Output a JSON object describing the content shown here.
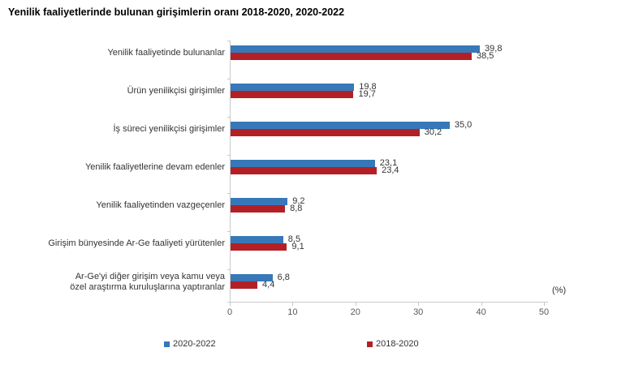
{
  "title": "Yenilik faaliyetlerinde bulunan girişimlerin oranı 2018-2020, 2020-2022",
  "chart_data": {
    "type": "bar",
    "orientation": "horizontal",
    "title": "Yenilik faaliyetlerinde bulunan girişimlerin oranı 2018-2020, 2020-2022",
    "unit_label": "(%)",
    "xlim": [
      0,
      50
    ],
    "x_ticks": [
      0,
      10,
      20,
      30,
      40,
      50
    ],
    "grid": false,
    "legend_position": "bottom",
    "value_label_decimal": "comma",
    "categories": [
      "Yenilik faaliyetinde bulunanlar",
      "Ürün yenilikçisi girişimler",
      "İş süreci yenilikçisi girişimler",
      "Yenilik faaliyetlerine devam edenler",
      "Yenilik faaliyetinden vazgeçenler",
      "Girişim bünyesinde Ar-Ge faaliyeti yürütenler",
      "Ar-Ge'yi diğer girişim veya kamu veya\nözel araştırma kuruluşlarına yaptıranlar"
    ],
    "series": [
      {
        "name": "2020-2022",
        "color": "#3778B8",
        "values": [
          39.8,
          19.8,
          35.0,
          23.1,
          9.2,
          8.5,
          6.8
        ]
      },
      {
        "name": "2018-2020",
        "color": "#B22026",
        "values": [
          38.5,
          19.7,
          30.2,
          23.4,
          8.8,
          9.1,
          4.4
        ]
      }
    ]
  }
}
